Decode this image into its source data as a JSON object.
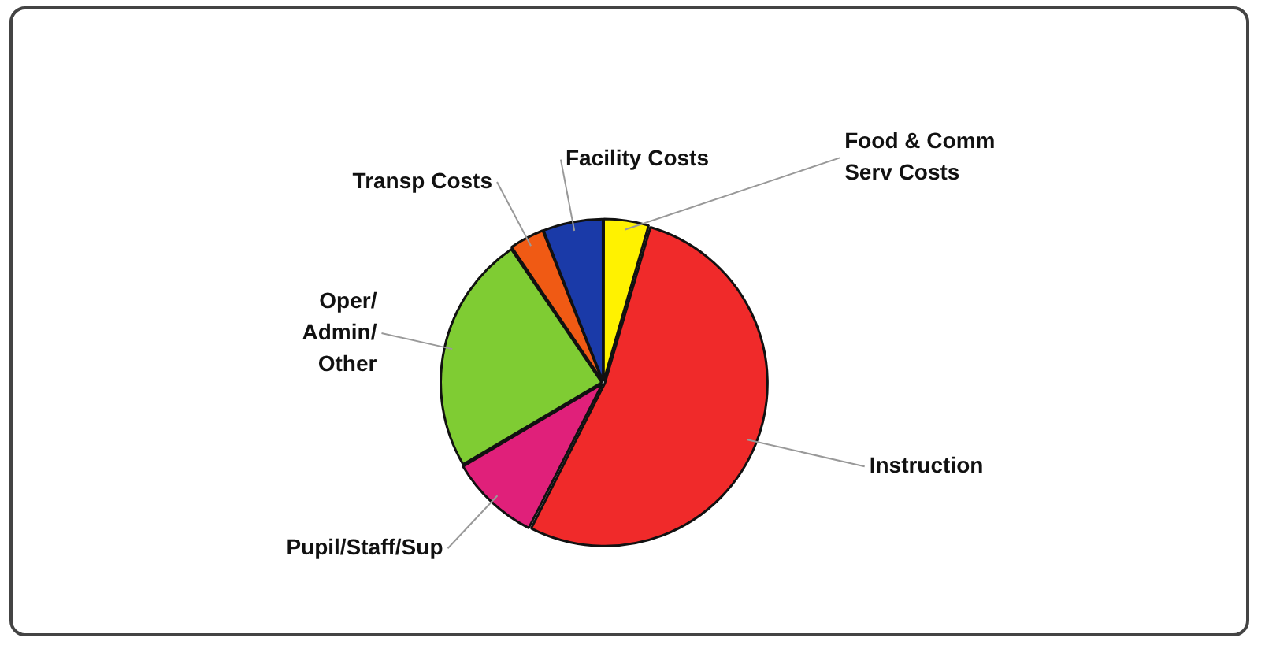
{
  "chart_data": {
    "type": "pie",
    "categories": [
      "Food & Comm\nServ Costs",
      "Instruction",
      "Pupil/Staff/Sup",
      "Oper/\nAdmin/\nOther",
      "Transp Costs",
      "Facility Costs"
    ],
    "values": [
      4.5,
      53,
      9,
      24,
      3.5,
      6
    ],
    "colors": [
      "#fff200",
      "#f02a2a",
      "#e0207a",
      "#7fcc33",
      "#f05a14",
      "#1a3aa8"
    ],
    "legend": false
  }
}
